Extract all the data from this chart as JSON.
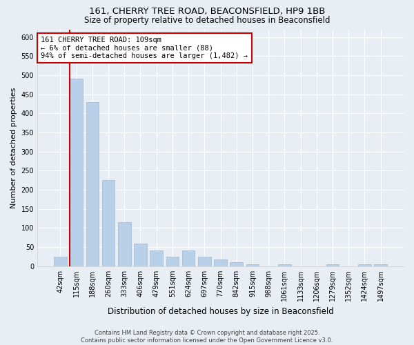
{
  "title_line1": "161, CHERRY TREE ROAD, BEACONSFIELD, HP9 1BB",
  "title_line2": "Size of property relative to detached houses in Beaconsfield",
  "xlabel": "Distribution of detached houses by size in Beaconsfield",
  "ylabel": "Number of detached properties",
  "categories": [
    "42sqm",
    "115sqm",
    "188sqm",
    "260sqm",
    "333sqm",
    "406sqm",
    "479sqm",
    "551sqm",
    "624sqm",
    "697sqm",
    "770sqm",
    "842sqm",
    "915sqm",
    "988sqm",
    "1061sqm",
    "1133sqm",
    "1206sqm",
    "1279sqm",
    "1352sqm",
    "1424sqm",
    "1497sqm"
  ],
  "values": [
    25,
    490,
    430,
    225,
    115,
    60,
    42,
    25,
    42,
    25,
    18,
    10,
    5,
    0,
    5,
    0,
    0,
    5,
    0,
    5,
    5
  ],
  "bar_color": "#b8d0e8",
  "bar_edge_color": "#a0b8d0",
  "highlight_color": "#cc0000",
  "red_line_bar_index": 1,
  "annotation_text": "161 CHERRY TREE ROAD: 109sqm\n← 6% of detached houses are smaller (88)\n94% of semi-detached houses are larger (1,482) →",
  "footer_text": "Contains HM Land Registry data © Crown copyright and database right 2025.\nContains public sector information licensed under the Open Government Licence v3.0.",
  "ylim": [
    0,
    620
  ],
  "yticks": [
    0,
    50,
    100,
    150,
    200,
    250,
    300,
    350,
    400,
    450,
    500,
    550,
    600
  ],
  "background_color": "#e8eef4",
  "grid_color": "#ffffff",
  "figsize": [
    6.0,
    5.0
  ],
  "dpi": 100
}
